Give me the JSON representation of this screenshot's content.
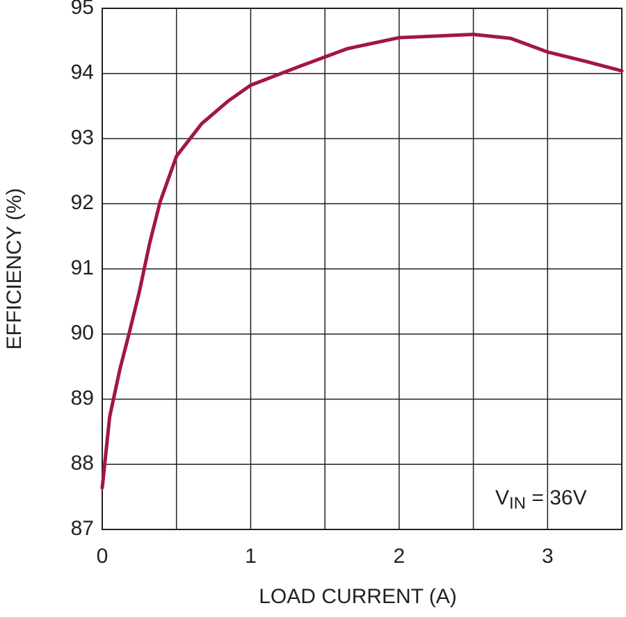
{
  "chart_data": {
    "type": "line",
    "x_label": "LOAD CURRENT (A)",
    "y_label": "EFFICIENCY (%)",
    "annotation": {
      "main": "V",
      "sub": "IN",
      "rest": " = 36V"
    },
    "x": [
      0,
      0.05,
      0.12,
      0.18,
      0.25,
      0.32,
      0.39,
      0.5,
      0.67,
      0.85,
      1.0,
      1.33,
      1.65,
      2.0,
      2.5,
      2.75,
      3.0,
      3.25,
      3.5
    ],
    "series": [
      {
        "name": "VIN = 36V",
        "color": "#a3173f",
        "values": [
          87.64,
          88.73,
          89.47,
          90.0,
          90.65,
          91.4,
          92.03,
          92.73,
          93.23,
          93.58,
          93.82,
          94.11,
          94.38,
          94.55,
          94.6,
          94.54,
          94.33,
          94.19,
          94.04
        ]
      }
    ],
    "xlim": [
      0,
      3.5
    ],
    "xticks": [
      0,
      1,
      2,
      3
    ],
    "xgrid": [
      0,
      0.5,
      1,
      1.5,
      2,
      2.5,
      3,
      3.5
    ],
    "ylim": [
      87,
      95
    ],
    "yticks": [
      87,
      88,
      89,
      90,
      91,
      92,
      93,
      94,
      95
    ],
    "grid": true
  }
}
